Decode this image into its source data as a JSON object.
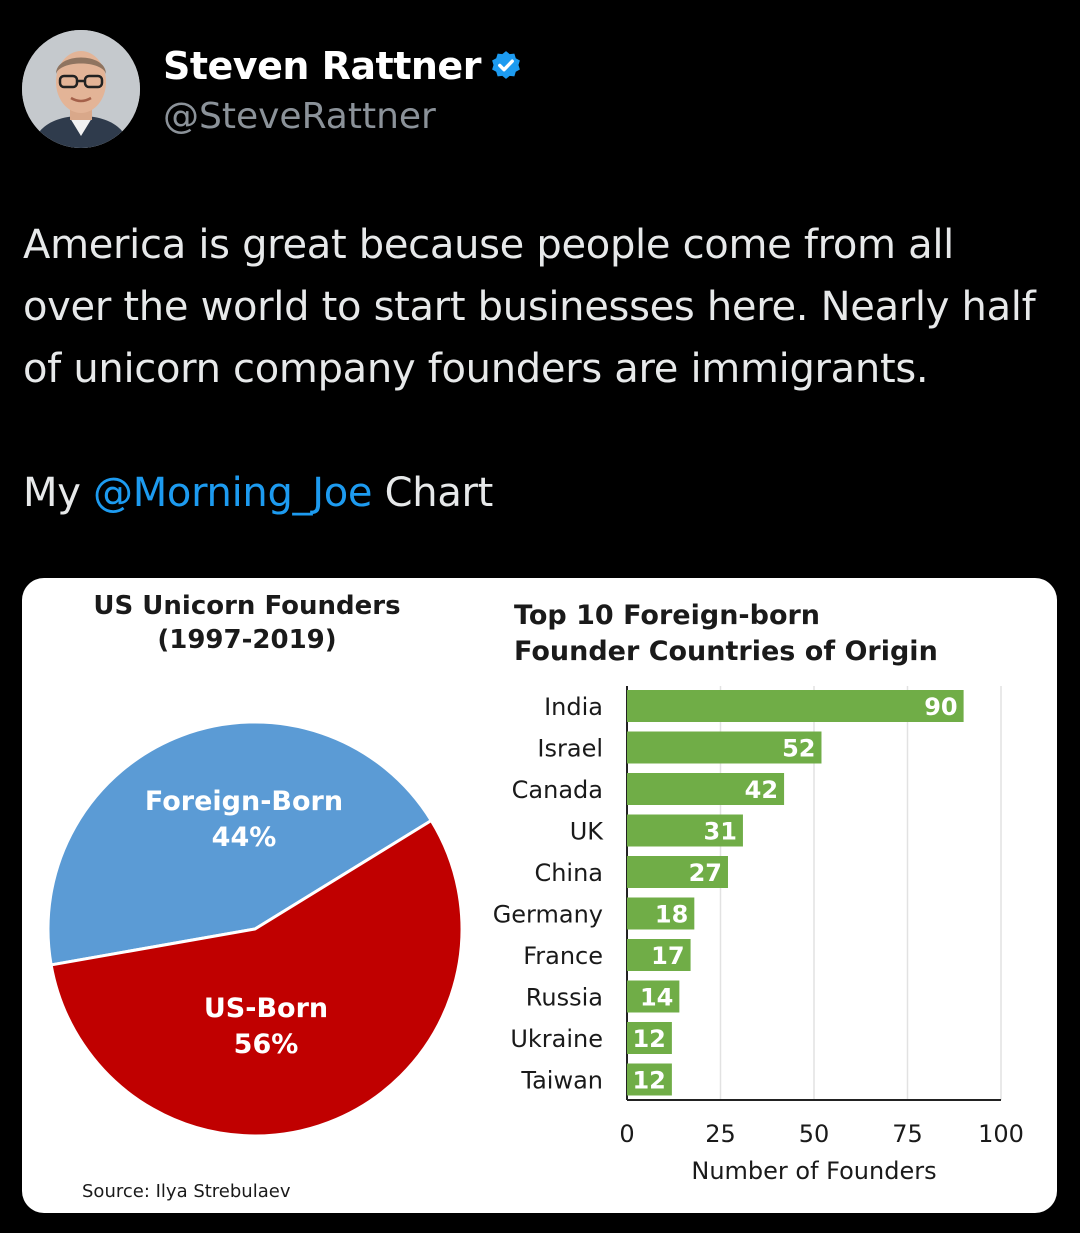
{
  "author": {
    "name": "Steven Rattner",
    "handle": "@SteveRattner",
    "verified": true,
    "avatar": "avatar-photo",
    "verified_badge": "verified-badge-icon"
  },
  "tweet": {
    "line1": "America is great because people come from all",
    "line2": "over the world to start businesses here. Nearly half",
    "line3": "of unicorn company founders are immigrants.",
    "line5_prefix": "My ",
    "line5_mention": "@Morning_Joe",
    "line5_suffix": " Chart"
  },
  "colors": {
    "pie_foreign": "#5b9bd5",
    "pie_us": "#c00000",
    "bar": "#70ad47",
    "mention": "#1d9bf0"
  },
  "chart_data": [
    {
      "type": "pie",
      "title_line1": "US Unicorn Founders",
      "title_line2": "(1997-2019)",
      "slices": [
        {
          "name": "Foreign-Born",
          "value": 44,
          "label": "44%"
        },
        {
          "name": "US-Born",
          "value": 56,
          "label": "56%"
        }
      ],
      "source": "Source: Ilya Strebulaev"
    },
    {
      "type": "bar",
      "orientation": "horizontal",
      "title_line1": "Top 10 Foreign-born",
      "title_line2": "Founder Countries of Origin",
      "categories": [
        "India",
        "Israel",
        "Canada",
        "UK",
        "China",
        "Germany",
        "France",
        "Russia",
        "Ukraine",
        "Taiwan"
      ],
      "values": [
        90,
        52,
        42,
        31,
        27,
        18,
        17,
        14,
        12,
        12
      ],
      "xlabel": "Number of Founders",
      "xlim": [
        0,
        100
      ],
      "xticks": [
        0,
        25,
        50,
        75,
        100
      ],
      "grid": true
    }
  ]
}
